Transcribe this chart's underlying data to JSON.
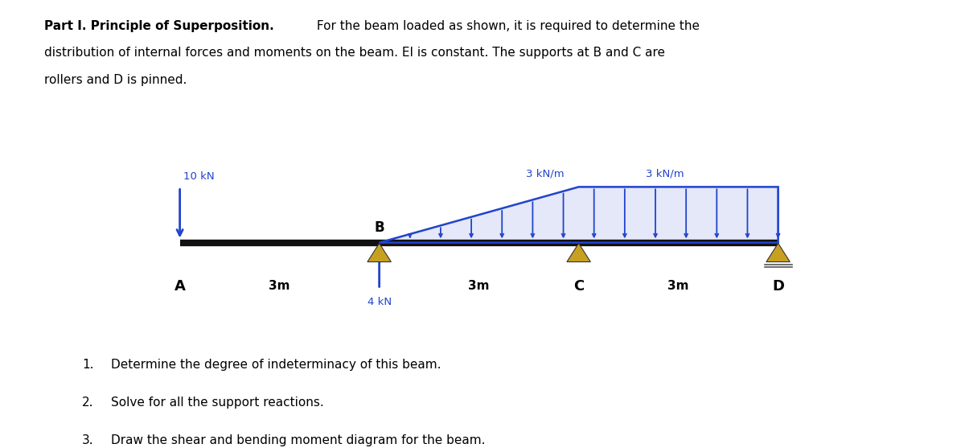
{
  "bg_color": "#ffffff",
  "beam_color": "#111111",
  "blue_color": "#2244cc",
  "support_color": "#c8a020",
  "title_bold": "Part I. Principle of Superposition.",
  "title_normal": " For the beam loaded as shown, it is required to determine the",
  "title_line2": "distribution of internal forces and moments on the beam. EI is constant. The supports at B and C are",
  "title_line3": "rollers and D is pinned.",
  "point_load_label": "10 kN",
  "upward_load_label": "4 kN",
  "dist_load_label_left": "3 kN/m",
  "dist_load_label_right": "3 kN/m",
  "node_labels": [
    "A",
    "B",
    "C",
    "D"
  ],
  "span_label": "3m",
  "questions": [
    [
      "1.",
      "Determine the degree of indeterminacy of this beam."
    ],
    [
      "2.",
      "Solve for all the support reactions."
    ],
    [
      "3.",
      "Draw the shear and bending moment diagram for the beam."
    ]
  ]
}
